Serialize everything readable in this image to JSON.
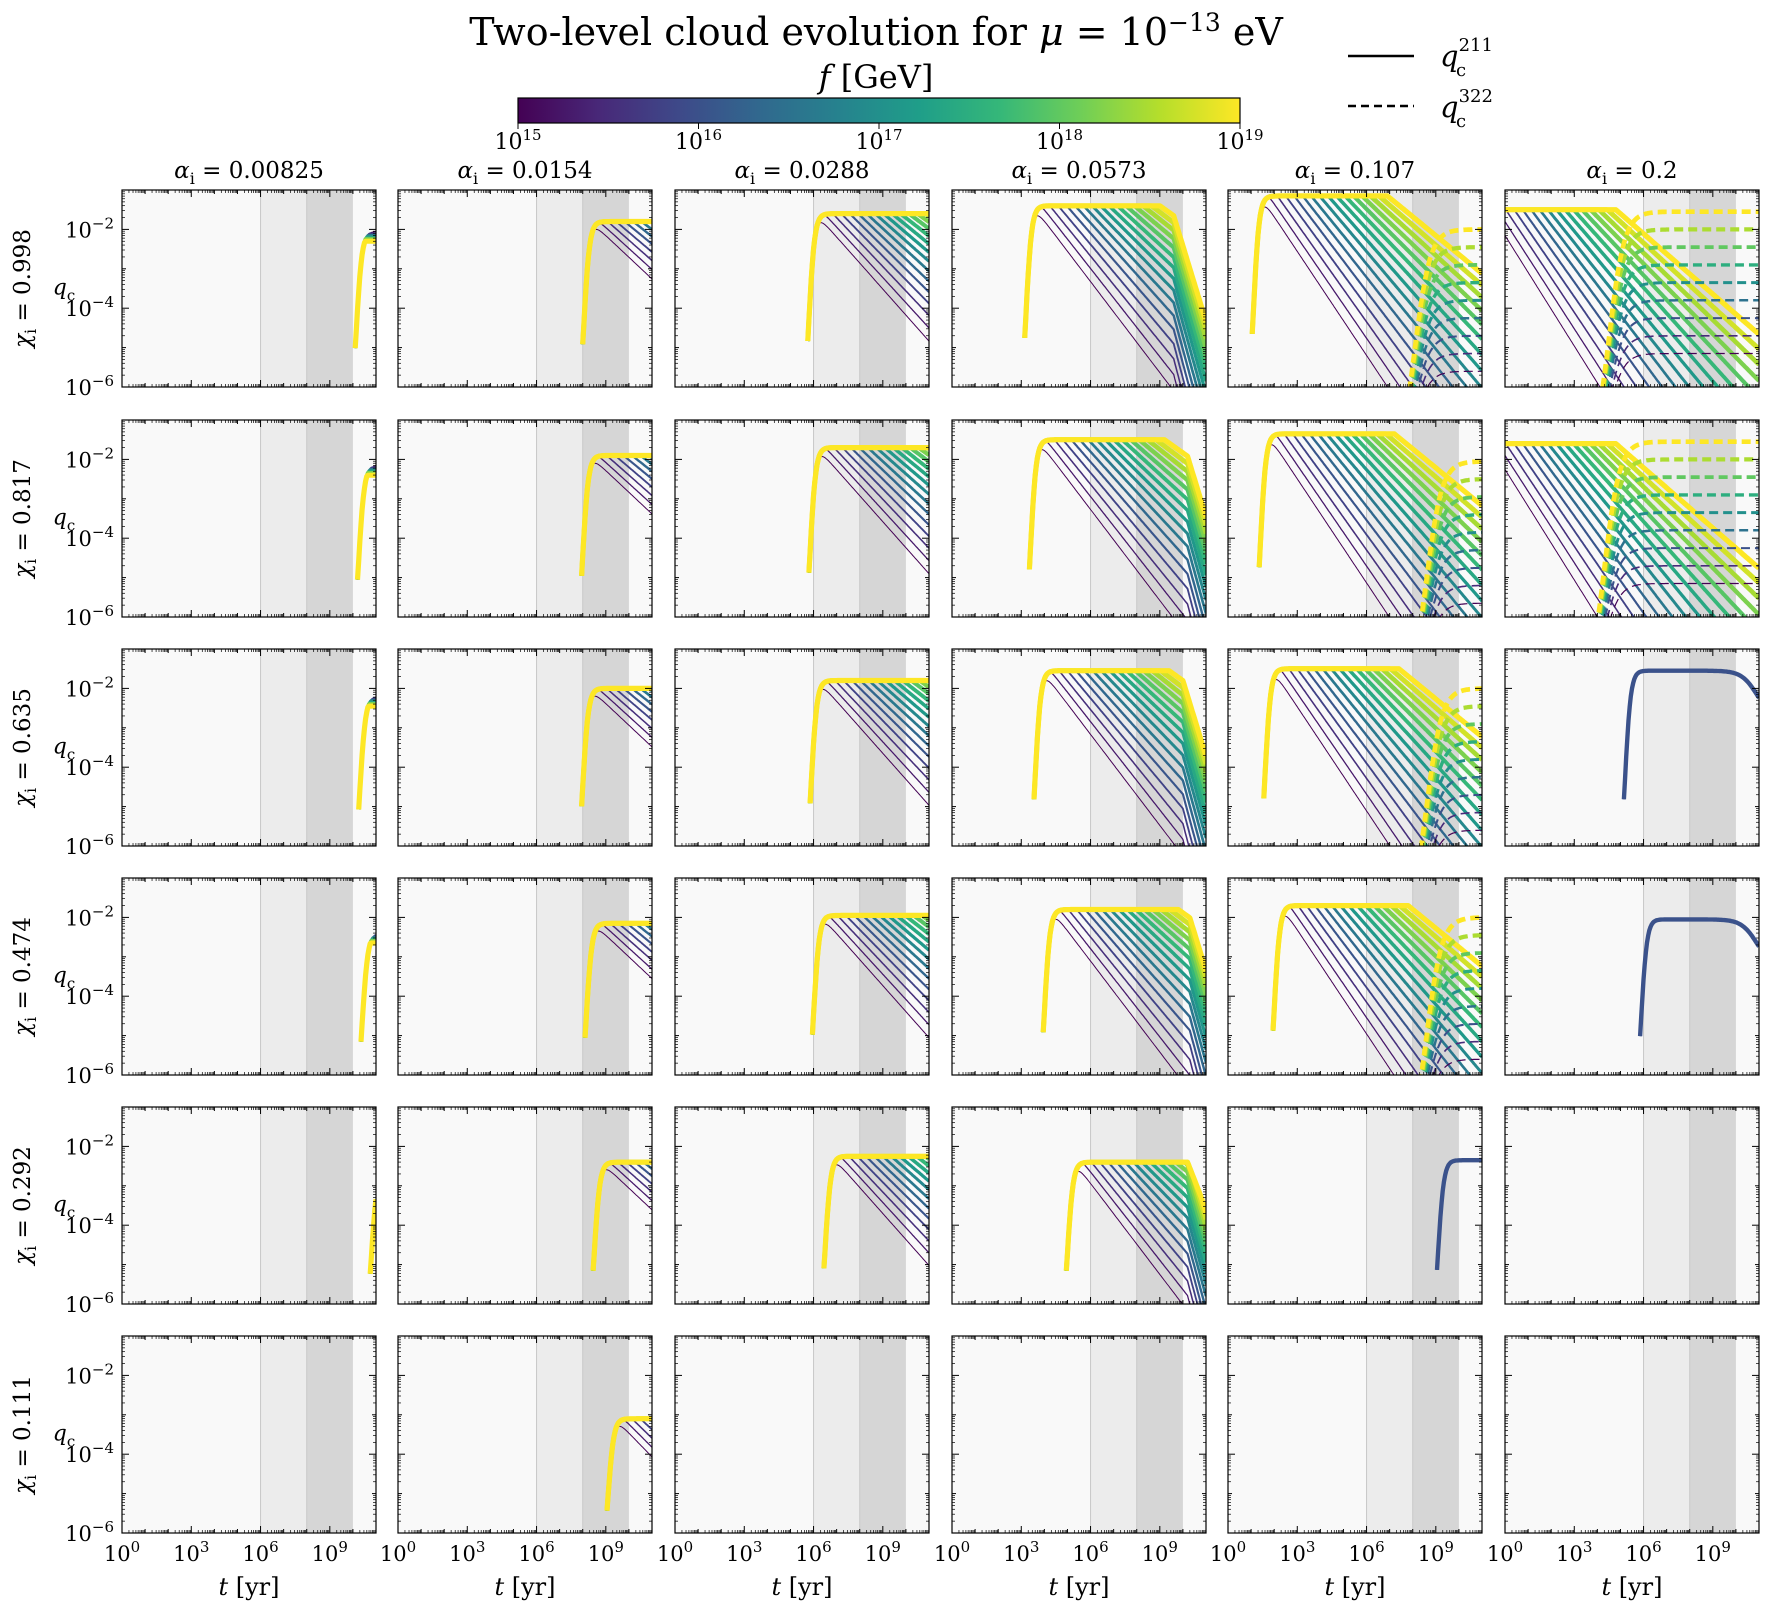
{
  "figure": {
    "title_prefix": "Two-level cloud evolution for",
    "title_symbol": "μ",
    "title_eq": " = 10",
    "title_exp": "−13",
    "title_unit": " eV"
  },
  "colorbar": {
    "label_symbol": "f",
    "label_unit": " [GeV]",
    "tick_base": "10",
    "tick_exponents": [
      "15",
      "16",
      "17",
      "18",
      "19"
    ],
    "range_log10": [
      15,
      19
    ],
    "colormap": [
      "#440154",
      "#482878",
      "#3e4989",
      "#31688e",
      "#26828e",
      "#1f9e89",
      "#35b779",
      "#6ece58",
      "#b5de2b",
      "#fde725"
    ]
  },
  "legend": {
    "placement": "top-right",
    "entries": [
      {
        "symbol": "q",
        "sub": "c",
        "sup": "211",
        "linestyle": "solid"
      },
      {
        "symbol": "q",
        "sub": "c",
        "sup": "322",
        "linestyle": "dashed"
      }
    ]
  },
  "chart_data": {
    "type": "line",
    "layout": "6x6 grid",
    "xscale": "log",
    "yscale": "log",
    "xlim_log10": [
      0,
      11
    ],
    "ylim_log10": [
      -6,
      -1
    ],
    "xlabel_symbol": "t",
    "xlabel_unit": " [yr]",
    "ylabel_symbol": "q",
    "ylabel_sub": "c",
    "x_ticks": [
      {
        "base": "10",
        "exp": "0"
      },
      {
        "base": "10",
        "exp": "3"
      },
      {
        "base": "10",
        "exp": "6"
      },
      {
        "base": "10",
        "exp": "9"
      }
    ],
    "y_ticks": [
      {
        "base": "10",
        "exp": "−2"
      },
      {
        "base": "10",
        "exp": "−4"
      },
      {
        "base": "10",
        "exp": "−6"
      }
    ],
    "alpha_symbol": "α",
    "alpha_sub": "i",
    "alpha_values": [
      "0.00825",
      "0.0154",
      "0.0288",
      "0.0573",
      "0.107",
      "0.2"
    ],
    "chi_symbol": "χ",
    "chi_sub": "i",
    "chi_values": [
      "0.998",
      "0.817",
      "0.635",
      "0.474",
      "0.292",
      "0.111"
    ],
    "shaded_bands_log10_t": [
      {
        "from": 6,
        "to": 8,
        "shade": "light"
      },
      {
        "from": 8,
        "to": 10,
        "shade": "dark"
      }
    ],
    "f_log10_min": 15,
    "f_log10_max": 19,
    "curve_count": 16,
    "panels": [
      [
        {
          "kind": "late",
          "t_on": 10.15,
          "q_max": -2.05
        },
        {
          "kind": "decay",
          "t_on": 8.05,
          "q_max": -1.8,
          "steep": 0.5
        },
        {
          "kind": "decay",
          "t_on": 5.8,
          "q_max": -1.6,
          "steep": 0.6
        },
        {
          "kind": "decay",
          "t_on": 3.2,
          "q_max": -1.4,
          "steep": 0.7,
          "late_drop": 9.6
        },
        {
          "kind": "two",
          "t_on": 1.1,
          "q_max": -1.15,
          "steep": 0.8,
          "t2": 8.1,
          "q2": -2.0
        },
        {
          "kind": "two",
          "t_on": -1,
          "q_max": -1.5,
          "steep": 0.85,
          "t2": 4.5,
          "q2": -1.55
        }
      ],
      [
        {
          "kind": "late",
          "t_on": 10.25,
          "q_max": -2.15
        },
        {
          "kind": "decay",
          "t_on": 8.0,
          "q_max": -1.9,
          "steep": 0.5
        },
        {
          "kind": "decay",
          "t_on": 5.85,
          "q_max": -1.7,
          "steep": 0.6
        },
        {
          "kind": "decay",
          "t_on": 3.4,
          "q_max": -1.5,
          "steep": 0.7,
          "late_drop": 10.2
        },
        {
          "kind": "two",
          "t_on": 1.4,
          "q_max": -1.35,
          "steep": 0.8,
          "t2": 8.6,
          "q2": -2.05
        },
        {
          "kind": "two",
          "t_on": -1,
          "q_max": -1.6,
          "steep": 0.85,
          "t2": 4.3,
          "q2": -1.55
        }
      ],
      [
        {
          "kind": "late",
          "t_on": 10.3,
          "q_max": -2.2
        },
        {
          "kind": "decay",
          "t_on": 8.0,
          "q_max": -2.0,
          "steep": 0.5
        },
        {
          "kind": "decay",
          "t_on": 5.9,
          "q_max": -1.8,
          "steep": 0.6
        },
        {
          "kind": "decay",
          "t_on": 3.6,
          "q_max": -1.55,
          "steep": 0.7,
          "late_drop": 10.0
        },
        {
          "kind": "two",
          "t_on": 1.6,
          "q_max": -1.5,
          "steep": 0.8,
          "t2": 8.6,
          "q2": -2.0
        },
        {
          "kind": "flat",
          "t_on": 5.2,
          "q_max": -1.55,
          "late_drop": 10.9
        }
      ],
      [
        {
          "kind": "late",
          "t_on": 10.4,
          "q_max": -2.4
        },
        {
          "kind": "decay",
          "t_on": 8.15,
          "q_max": -2.15,
          "steep": 0.5
        },
        {
          "kind": "decay",
          "t_on": 6.0,
          "q_max": -1.95,
          "steep": 0.6
        },
        {
          "kind": "decay",
          "t_on": 4.0,
          "q_max": -1.8,
          "steep": 0.7,
          "late_drop": 10.3
        },
        {
          "kind": "two",
          "t_on": 2.0,
          "q_max": -1.7,
          "steep": 0.8,
          "t2": 8.6,
          "q2": -2.0
        },
        {
          "kind": "flat",
          "t_on": 5.9,
          "q_max": -2.05,
          "late_drop": 10.9
        }
      ],
      [
        {
          "kind": "late",
          "t_on": 10.8,
          "q_max": -2.6
        },
        {
          "kind": "decay",
          "t_on": 8.5,
          "q_max": -2.4,
          "steep": 0.5
        },
        {
          "kind": "decay",
          "t_on": 6.5,
          "q_max": -2.25,
          "steep": 0.6
        },
        {
          "kind": "decay",
          "t_on": 5.0,
          "q_max": -2.4,
          "steep": 0.7,
          "late_drop": 10.2
        },
        {
          "kind": "flat",
          "t_on": 9.1,
          "q_max": -2.35
        },
        {
          "kind": "empty"
        }
      ],
      [
        {
          "kind": "empty"
        },
        {
          "kind": "decay",
          "t_on": 9.1,
          "q_max": -3.1,
          "steep": 0.55
        },
        {
          "kind": "empty"
        },
        {
          "kind": "empty"
        },
        {
          "kind": "empty"
        },
        {
          "kind": "empty"
        }
      ]
    ]
  }
}
